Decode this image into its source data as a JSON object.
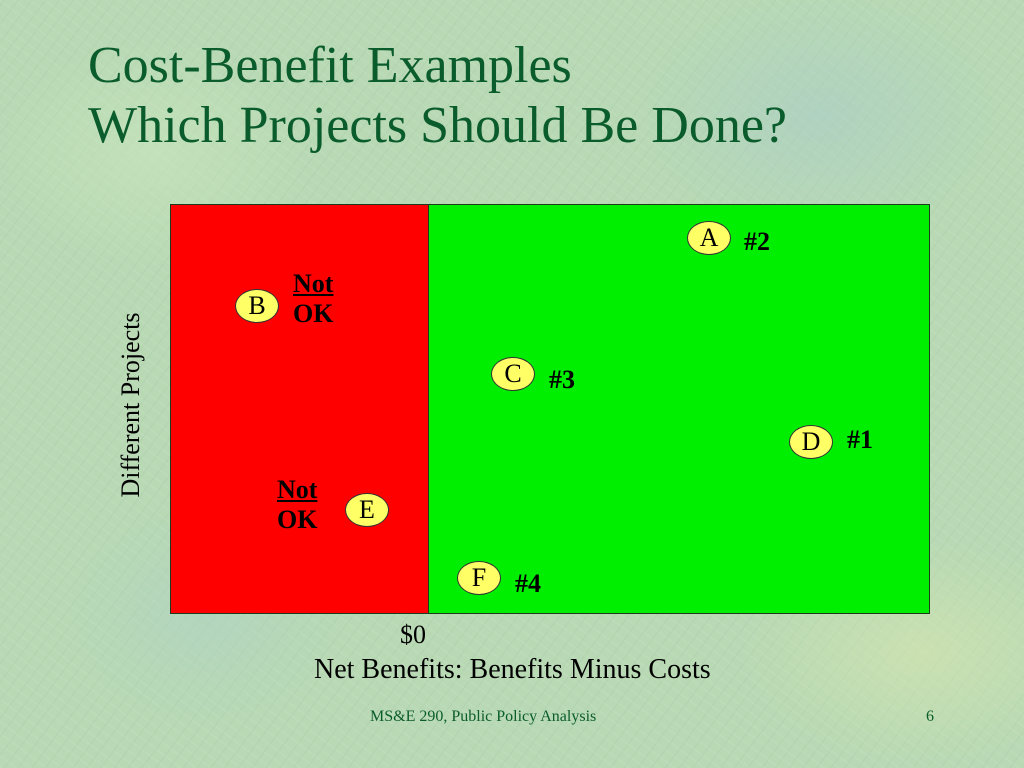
{
  "slide": {
    "title_line1": "Cost-Benefit Examples",
    "title_line2": "Which Projects Should Be Done?",
    "footer": "MS&E 290, Public Policy Analysis",
    "page_number": "6"
  },
  "diagram": {
    "y_axis_label": "Different Projects",
    "x_axis_label": "Net Benefits: Benefits Minus Costs",
    "zero_label": "$0",
    "colors": {
      "negative_region": "#ff0000",
      "positive_region": "#00ee00",
      "marker_fill": "#ffff66"
    },
    "projects": [
      {
        "id": "A",
        "rank": "#2"
      },
      {
        "id": "B",
        "verdict_line1": "Not",
        "verdict_line2": "OK"
      },
      {
        "id": "C",
        "rank": "#3"
      },
      {
        "id": "D",
        "rank": "#1"
      },
      {
        "id": "E",
        "verdict_line1": "Not",
        "verdict_line2": "OK"
      },
      {
        "id": "F",
        "rank": "#4"
      }
    ]
  }
}
